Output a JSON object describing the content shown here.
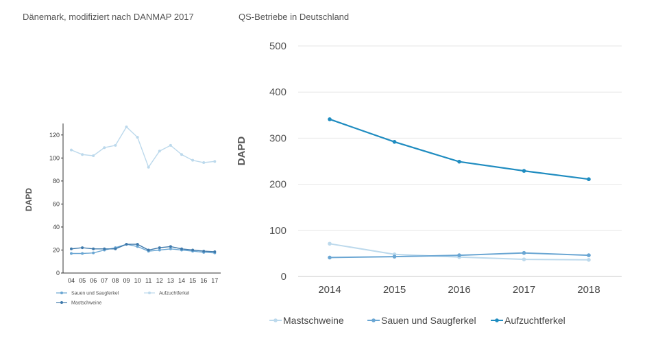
{
  "captions": {
    "left": "Dänemark, modifiziert nach DANMAP 2017",
    "right": "QS-Betriebe in Deutschland"
  },
  "colors": {
    "light": "#bcd9ec",
    "mid": "#6aa6d3",
    "dark": "#3e79ab",
    "main": "#1f8cc0",
    "axis_text": "#555555",
    "grid": "#e6e6e6"
  },
  "chart_data": [
    {
      "type": "line",
      "title": "",
      "xlabel": "",
      "ylabel": "DAPD",
      "categories": [
        "04",
        "05",
        "06",
        "07",
        "08",
        "09",
        "10",
        "11",
        "12",
        "13",
        "14",
        "15",
        "16",
        "17"
      ],
      "ylim": [
        0,
        130
      ],
      "yticks": [
        0,
        20,
        40,
        60,
        80,
        100,
        120
      ],
      "legend": "bottom",
      "series": [
        {
          "name": "Sauen und Saugferkel",
          "values": [
            17,
            17,
            17.5,
            20,
            22,
            25,
            23,
            19,
            20,
            21,
            20,
            19,
            18,
            17.5
          ]
        },
        {
          "name": "Aufzuchtferkel",
          "values": [
            107,
            103,
            102,
            109,
            111,
            127,
            118,
            92,
            106,
            111,
            103,
            98,
            96,
            97
          ]
        },
        {
          "name": "Mastschweine",
          "values": [
            21,
            22,
            21,
            21,
            21,
            25,
            25,
            20,
            22,
            23,
            21,
            20,
            19,
            18.5
          ]
        }
      ]
    },
    {
      "type": "line",
      "title": "",
      "xlabel": "",
      "ylabel": "DAPD",
      "categories": [
        "2014",
        "2015",
        "2016",
        "2017",
        "2018"
      ],
      "ylim": [
        0,
        500
      ],
      "yticks": [
        0,
        100,
        200,
        300,
        400,
        500
      ],
      "grid": true,
      "legend": "bottom",
      "series": [
        {
          "name": "Mastschweine",
          "values": [
            71,
            48,
            42,
            37,
            36
          ]
        },
        {
          "name": "Sauen und Saugferkel",
          "values": [
            41,
            43,
            46,
            51,
            46
          ]
        },
        {
          "name": "Aufzuchtferkel",
          "values": [
            341,
            292,
            249,
            229,
            211
          ]
        }
      ]
    }
  ]
}
